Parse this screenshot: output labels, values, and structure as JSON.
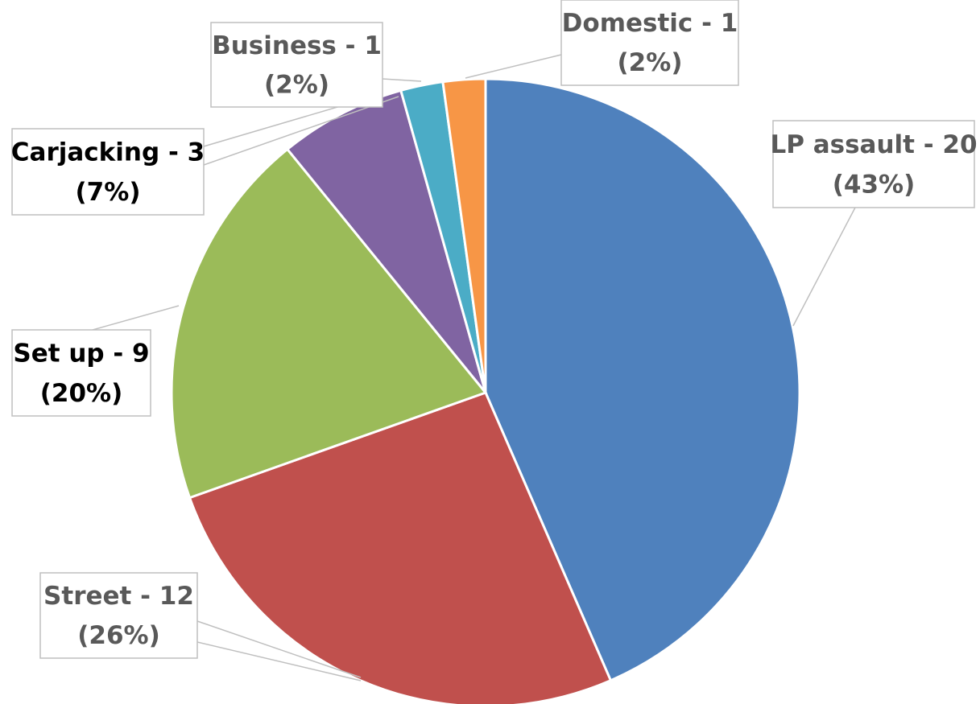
{
  "chart_data": {
    "type": "pie",
    "values": [
      20,
      12,
      9,
      3,
      1,
      1
    ],
    "value_labels": [
      "LP assault - 20",
      "Street - 12",
      "Set up - 9",
      "Carjacking - 3",
      "Business - 1",
      "Domestic - 1"
    ],
    "percents": [
      43,
      26,
      20,
      7,
      2,
      2
    ],
    "percent_labels": [
      "(43%)",
      "(26%)",
      "(20%)",
      "(7%)",
      "(2%)",
      "(2%)"
    ],
    "colors": [
      "#4f81bd",
      "#c0504d",
      "#9bbb59",
      "#8064a2",
      "#4bacc6",
      "#f79646"
    ],
    "label_colors": [
      "#595959",
      "#595959",
      "#000000",
      "#000000",
      "#595959",
      "#595959"
    ]
  }
}
